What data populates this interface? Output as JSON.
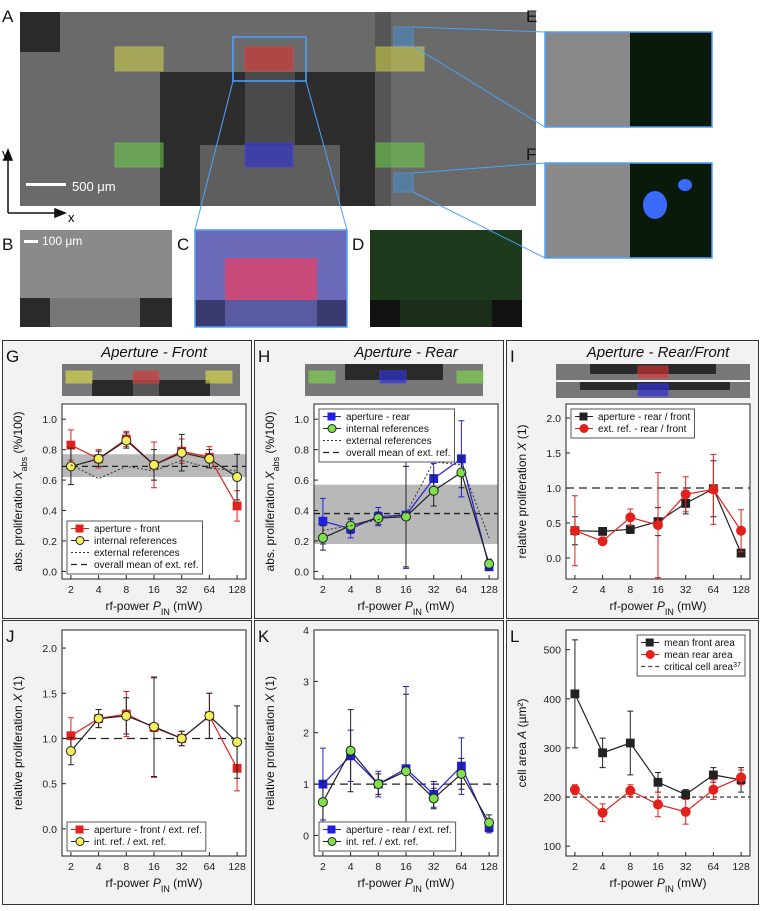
{
  "figure": {
    "panel_labels": [
      "A",
      "B",
      "C",
      "D",
      "E",
      "F"
    ],
    "scale_bar_large": "500 μm",
    "scale_bar_small": "100 μm",
    "axis_x": "x",
    "axis_y": "y"
  },
  "chart_data": [
    {
      "type": "line",
      "label": "G",
      "title": "Aperture - Front",
      "legend": "lower left",
      "ylabel": [
        {
          "text": "abs. proliferation ",
          "style": "normal"
        },
        {
          "text": "X",
          "style": "italic"
        },
        {
          "text": "abs",
          "style": "sub"
        },
        {
          "text": " (%/100)",
          "style": "normal"
        }
      ],
      "xlabel": [
        {
          "text": "rf-power ",
          "style": "normal"
        },
        {
          "text": "P",
          "style": "italic"
        },
        {
          "text": "IN",
          "style": "sub"
        },
        {
          "text": " (mW)",
          "style": "normal"
        }
      ],
      "x": [
        2,
        4,
        8,
        16,
        32,
        64,
        128
      ],
      "xscale": "log",
      "xlim": [
        1.6,
        160
      ],
      "xticks": [
        2,
        4,
        8,
        16,
        32,
        64,
        128
      ],
      "ylim": [
        -0.05,
        1.1
      ],
      "yticks": [
        {
          "value": 0,
          "label": "0.0"
        },
        0.2,
        0.4,
        0.6,
        0.8,
        {
          "value": 1,
          "label": "1.0"
        }
      ],
      "band": [
        0.62,
        0.77
      ],
      "series": [
        {
          "name": "aperture - front",
          "color": "#e3201b",
          "marker": "square",
          "fill": "#e3201b",
          "values": [
            0.83,
            0.74,
            0.87,
            0.7,
            0.79,
            0.75,
            0.43
          ],
          "errors": [
            0.1,
            0.06,
            0.05,
            0.15,
            0.08,
            0.07,
            0.1
          ]
        },
        {
          "name": "internal references",
          "color": "#222222",
          "marker": "circle",
          "fill": "#f4f05a",
          "values": [
            0.69,
            0.74,
            0.86,
            0.7,
            0.78,
            0.74,
            0.62
          ],
          "errors": [
            0.12,
            0.05,
            0.05,
            0.1,
            0.12,
            0.06,
            0.15
          ]
        },
        {
          "name": "external references",
          "color": "#333333",
          "marker": "none",
          "dash": "2,2",
          "values": [
            0.7,
            0.61,
            0.69,
            0.66,
            0.73,
            0.68,
            0.66
          ]
        }
      ],
      "reflines": [
        {
          "name": "overall mean of ext. ref.",
          "value": 0.69,
          "dash": "6,4",
          "color": "#222222"
        }
      ]
    },
    {
      "type": "line",
      "label": "H",
      "title": "Aperture - Rear",
      "legend": "upper left",
      "ylabel": [
        {
          "text": "abs. proliferation ",
          "style": "normal"
        },
        {
          "text": "X",
          "style": "italic"
        },
        {
          "text": "abs",
          "style": "sub"
        },
        {
          "text": " (%/100)",
          "style": "normal"
        }
      ],
      "xlabel": [
        {
          "text": "rf-power ",
          "style": "normal"
        },
        {
          "text": "P",
          "style": "italic"
        },
        {
          "text": "IN",
          "style": "sub"
        },
        {
          "text": " (mW)",
          "style": "normal"
        }
      ],
      "x": [
        2,
        4,
        8,
        16,
        32,
        64,
        128
      ],
      "xscale": "log",
      "xlim": [
        1.6,
        160
      ],
      "xticks": [
        2,
        4,
        8,
        16,
        32,
        64,
        128
      ],
      "ylim": [
        -0.05,
        1.1
      ],
      "yticks": [
        {
          "value": 0,
          "label": "0.0"
        },
        0.2,
        0.4,
        0.6,
        0.8,
        {
          "value": 1,
          "label": "1.0"
        }
      ],
      "band": [
        0.18,
        0.57
      ],
      "series": [
        {
          "name": "aperture - rear",
          "color": "#1f1fe0",
          "marker": "square",
          "fill": "#1f1fe0",
          "values": [
            0.33,
            0.28,
            0.36,
            0.37,
            0.61,
            0.74,
            0.03
          ],
          "errors": [
            0.15,
            0.06,
            0.06,
            0.35,
            0.1,
            0.25,
            0.02
          ]
        },
        {
          "name": "internal references",
          "color": "#222222",
          "marker": "circle",
          "fill": "#7ee04a",
          "values": [
            0.22,
            0.3,
            0.35,
            0.36,
            0.53,
            0.65,
            0.05
          ],
          "errors": [
            0.08,
            0.05,
            0.04,
            0.33,
            0.1,
            0.1,
            0.03
          ]
        },
        {
          "name": "external references",
          "color": "#333333",
          "marker": "none",
          "dash": "2,2",
          "values": [
            0.27,
            0.3,
            0.34,
            0.38,
            0.72,
            0.7,
            0.22
          ]
        }
      ],
      "reflines": [
        {
          "name": "overall mean of ext. ref.",
          "value": 0.38,
          "dash": "6,4",
          "color": "#222222"
        }
      ]
    },
    {
      "type": "line",
      "label": "I",
      "title": "Aperture - Rear/Front",
      "legend": "upper left",
      "ylabel": [
        {
          "text": "relative proliferation   ",
          "style": "normal"
        },
        {
          "text": "X",
          "style": "italic"
        },
        {
          "text": " (1)",
          "style": "normal"
        }
      ],
      "xlabel": [
        {
          "text": "rf-power ",
          "style": "normal"
        },
        {
          "text": "P",
          "style": "italic"
        },
        {
          "text": "IN",
          "style": "sub"
        },
        {
          "text": " (mW)",
          "style": "normal"
        }
      ],
      "x": [
        2,
        4,
        8,
        16,
        32,
        64,
        128
      ],
      "xscale": "log",
      "xlim": [
        1.6,
        160
      ],
      "xticks": [
        2,
        4,
        8,
        16,
        32,
        64,
        128
      ],
      "ylim": [
        -0.3,
        2.2
      ],
      "yticks": [
        {
          "value": 0,
          "label": "0.0"
        },
        0.5,
        {
          "value": 1,
          "label": "1.0"
        },
        1.5,
        {
          "value": 2,
          "label": "2.0"
        }
      ],
      "series": [
        {
          "name": "aperture - rear / front",
          "color": "#222222",
          "marker": "square",
          "fill": "#222222",
          "values": [
            0.39,
            0.38,
            0.41,
            0.52,
            0.78,
            0.99,
            0.07
          ],
          "errors": [
            0.2,
            0.05,
            0.06,
            0.2,
            0.15,
            0.4,
            0.05
          ]
        },
        {
          "name": "ext. ref. - rear / front",
          "color": "#e3201b",
          "marker": "circle",
          "fill": "#e3201b",
          "values": [
            0.39,
            0.24,
            0.58,
            0.47,
            0.91,
            0.98,
            0.39
          ],
          "errors": [
            0.5,
            0.05,
            0.12,
            0.75,
            0.25,
            0.5,
            0.3
          ]
        }
      ],
      "reflines": [
        {
          "value": 1,
          "dash": "8,5",
          "color": "#222222"
        }
      ]
    },
    {
      "type": "line",
      "label": "J",
      "legend": "lower left",
      "ylabel": [
        {
          "text": "relative proliferation   ",
          "style": "normal"
        },
        {
          "text": "X",
          "style": "italic"
        },
        {
          "text": " (1)",
          "style": "normal"
        }
      ],
      "xlabel": [
        {
          "text": "rf-power ",
          "style": "normal"
        },
        {
          "text": "P",
          "style": "italic"
        },
        {
          "text": "IN",
          "style": "sub"
        },
        {
          "text": " (mW)",
          "style": "normal"
        }
      ],
      "x": [
        2,
        4,
        8,
        16,
        32,
        64,
        128
      ],
      "xscale": "log",
      "xlim": [
        1.6,
        160
      ],
      "xticks": [
        2,
        4,
        8,
        16,
        32,
        64,
        128
      ],
      "ylim": [
        -0.3,
        2.2
      ],
      "yticks": [
        {
          "value": 0,
          "label": "0.0"
        },
        0.5,
        {
          "value": 1,
          "label": "1.0"
        },
        1.5,
        {
          "value": 2,
          "label": "2.0"
        }
      ],
      "series": [
        {
          "name": "aperture - front / ext. ref.",
          "color": "#e3201b",
          "marker": "square",
          "fill": "#e3201b",
          "values": [
            1.03,
            1.22,
            1.27,
            1.12,
            1.0,
            1.25,
            0.67
          ],
          "errors": [
            0.2,
            0.1,
            0.25,
            0.55,
            0.08,
            0.25,
            0.25
          ]
        },
        {
          "name": "int. ref. / ext. ref.",
          "color": "#222222",
          "marker": "circle",
          "fill": "#f4f05a",
          "values": [
            0.86,
            1.22,
            1.25,
            1.13,
            1.0,
            1.25,
            0.96
          ],
          "errors": [
            0.15,
            0.1,
            0.2,
            0.55,
            0.08,
            0.25,
            0.4
          ]
        }
      ],
      "reflines": [
        {
          "value": 1,
          "dash": "8,5",
          "color": "#222222"
        }
      ]
    },
    {
      "type": "line",
      "label": "K",
      "legend": "lower left",
      "ylabel": [
        {
          "text": "relative proliferation   ",
          "style": "normal"
        },
        {
          "text": "X",
          "style": "italic"
        },
        {
          "text": " (1)",
          "style": "normal"
        }
      ],
      "xlabel": [
        {
          "text": "rf-power ",
          "style": "normal"
        },
        {
          "text": "P",
          "style": "italic"
        },
        {
          "text": "IN",
          "style": "sub"
        },
        {
          "text": " (mW)",
          "style": "normal"
        }
      ],
      "x": [
        2,
        4,
        8,
        16,
        32,
        64,
        128
      ],
      "xscale": "log",
      "xlim": [
        1.6,
        160
      ],
      "xticks": [
        2,
        4,
        8,
        16,
        32,
        64,
        128
      ],
      "ylim": [
        -0.4,
        4
      ],
      "yticks": [
        0,
        1,
        2,
        3,
        4
      ],
      "series": [
        {
          "name": "aperture - rear / ext. ref.",
          "color": "#1f1fe0",
          "marker": "square",
          "fill": "#1f1fe0",
          "values": [
            1.0,
            1.55,
            1.0,
            1.3,
            0.8,
            1.35,
            0.15
          ],
          "errors": [
            0.7,
            0.5,
            0.25,
            1.6,
            0.25,
            0.55,
            0.1
          ]
        },
        {
          "name": "int. ref. / ext. ref.",
          "color": "#222222",
          "marker": "circle",
          "fill": "#7ee04a",
          "values": [
            0.65,
            1.65,
            1.0,
            1.25,
            0.72,
            1.2,
            0.25
          ],
          "errors": [
            0.4,
            0.8,
            0.2,
            1.5,
            0.2,
            0.3,
            0.15
          ]
        }
      ],
      "reflines": [
        {
          "value": 1,
          "dash": "8,5",
          "color": "#222222"
        }
      ]
    },
    {
      "type": "line",
      "label": "L",
      "legend": "upper right",
      "ylabel": [
        {
          "text": "cell area ",
          "style": "normal"
        },
        {
          "text": "A",
          "style": "italic"
        },
        {
          "text": " (µm²)",
          "style": "normal"
        }
      ],
      "xlabel": [
        {
          "text": "rf-power ",
          "style": "normal"
        },
        {
          "text": "P",
          "style": "italic"
        },
        {
          "text": "IN",
          "style": "sub"
        },
        {
          "text": " (mW)",
          "style": "normal"
        }
      ],
      "x": [
        2,
        4,
        8,
        16,
        32,
        64,
        128
      ],
      "xscale": "log",
      "xlim": [
        1.6,
        160
      ],
      "xticks": [
        2,
        4,
        8,
        16,
        32,
        64,
        128
      ],
      "ylim": [
        80,
        540
      ],
      "yticks": [
        100,
        200,
        300,
        400,
        500
      ],
      "series": [
        {
          "name": "mean front area",
          "color": "#222222",
          "marker": "square",
          "fill": "#222222",
          "values": [
            410,
            290,
            310,
            230,
            205,
            245,
            235
          ],
          "errors": [
            110,
            30,
            65,
            20,
            10,
            15,
            25
          ]
        },
        {
          "name": "mean rear area",
          "color": "#e3201b",
          "marker": "circle",
          "fill": "#e3201b",
          "values": [
            215,
            168,
            213,
            185,
            170,
            215,
            240
          ],
          "errors": [
            10,
            18,
            12,
            25,
            25,
            20,
            15
          ]
        }
      ],
      "reflines": [
        {
          "name": "critical cell area",
          "sup": "37",
          "value": 200,
          "dash": "4,3",
          "color": "#444444"
        }
      ]
    }
  ]
}
